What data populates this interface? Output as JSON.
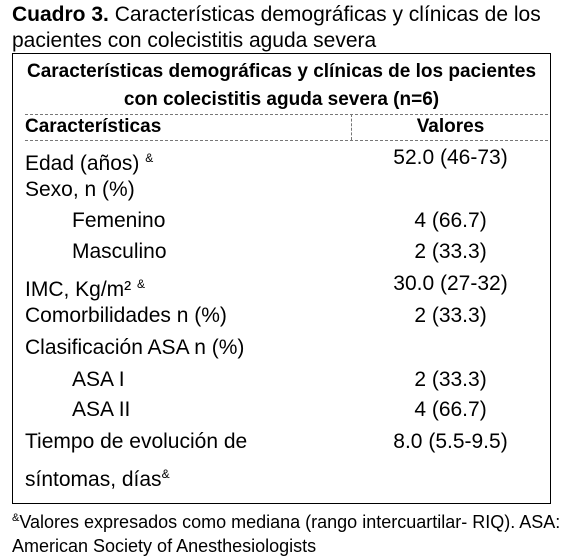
{
  "caption": {
    "label": "Cuadro 3.",
    "text": " Características demográficas y clínicas de los pacientes con colecistitis aguda severa"
  },
  "table": {
    "title": "Características demográficas y clínicas de los pacientes con colecistitis aguda severa (n=6)",
    "header_left": "Características",
    "header_right": "Valores",
    "rows": [
      {
        "label": "Edad (años) ",
        "mark": "&",
        "value": "52.0 (46-73)"
      },
      {
        "label": "Sexo, n (%)",
        "mark": "",
        "value": ""
      },
      {
        "label": "Femenino",
        "mark": "",
        "value": "4 (66.7)"
      },
      {
        "label": "Masculino",
        "mark": "",
        "value": "2 (33.3)"
      },
      {
        "label": "IMC, Kg/m² ",
        "mark": "&",
        "value": "30.0 (27-32)"
      },
      {
        "label": "Comorbilidades n (%)",
        "mark": "",
        "value": "2 (33.3)"
      },
      {
        "label": "Clasificación ASA n (%)",
        "mark": "",
        "value": ""
      },
      {
        "label": "ASA I",
        "mark": "",
        "value": "2 (33.3)"
      },
      {
        "label": "ASA II",
        "mark": "",
        "value": "4 (66.7)"
      },
      {
        "label": "Tiempo de evolución de",
        "mark": "",
        "value": "8.0 (5.5-9.5)"
      },
      {
        "label": "síntomas, días",
        "mark": "&",
        "value": ""
      }
    ]
  },
  "footnote": {
    "mark": "&",
    "text": "Valores expresados como mediana (rango intercuartilar- RIQ). ASA: American Society of Anesthesiologists"
  }
}
